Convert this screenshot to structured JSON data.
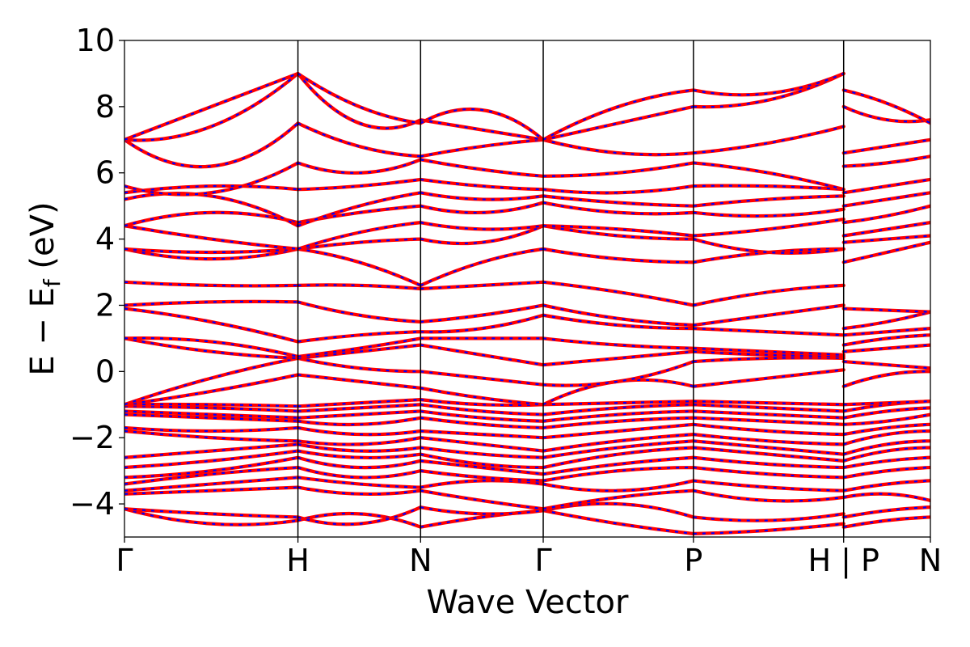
{
  "chart_data": {
    "type": "line",
    "xlabel": "Wave Vector",
    "ylabel_parts": {
      "lead": "E − E",
      "subscript": "f",
      "unit": " (eV)"
    },
    "ylim": [
      -5,
      10
    ],
    "yticks": [
      {
        "value": -4,
        "label": "−4"
      },
      {
        "value": -2,
        "label": "−2"
      },
      {
        "value": 0,
        "label": "0"
      },
      {
        "value": 2,
        "label": "2"
      },
      {
        "value": 4,
        "label": "4"
      },
      {
        "value": 6,
        "label": "6"
      },
      {
        "value": 8,
        "label": "8"
      },
      {
        "value": 10,
        "label": "10"
      }
    ],
    "kpath_labels": [
      "Γ",
      "H",
      "N",
      "Γ",
      "P",
      "H | P",
      "N"
    ],
    "kpath_positions": [
      0,
      1.0,
      0.707,
      0.707,
      0.866,
      0.866,
      0.5
    ],
    "line_colors": {
      "solid": "#ff0000",
      "dashed": "#0000ff"
    },
    "style": "red solid lines overlaid with blue dashed lines (two calculations coinciding)",
    "bands": [
      {
        "segments": [
          [
            -4.15,
            -4.6,
            -4.5
          ],
          [
            -4.5,
            -4.3,
            -4.7
          ],
          [
            -4.7,
            -4.4,
            -4.2
          ],
          [
            -4.2,
            -4.6,
            -4.9
          ],
          [
            -4.9,
            -4.8,
            -4.6
          ],
          [
            -4.7,
            -4.5,
            -4.4
          ]
        ]
      },
      {
        "segments": [
          [
            -4.15,
            -4.3,
            -4.4
          ],
          [
            -4.4,
            -4.6,
            -4.1
          ],
          [
            -4.1,
            -4.3,
            -4.2
          ],
          [
            -4.2,
            -4.0,
            -4.4
          ],
          [
            -4.4,
            -4.5,
            -4.3
          ],
          [
            -4.4,
            -4.2,
            -4.1
          ]
        ]
      },
      {
        "segments": [
          [
            -3.7,
            -3.6,
            -3.5
          ],
          [
            -3.5,
            -3.7,
            -3.6
          ],
          [
            -3.6,
            -3.9,
            -4.15
          ],
          [
            -4.15,
            -3.8,
            -3.6
          ],
          [
            -3.6,
            -3.9,
            -3.8
          ],
          [
            -3.8,
            -3.7,
            -3.9
          ]
        ]
      },
      {
        "segments": [
          [
            -3.6,
            -3.4,
            -3.2
          ],
          [
            -3.2,
            -3.4,
            -3.5
          ],
          [
            -3.5,
            -3.3,
            -3.4
          ],
          [
            -3.4,
            -3.6,
            -3.3
          ],
          [
            -3.3,
            -3.5,
            -3.6
          ],
          [
            -3.6,
            -3.4,
            -3.3
          ]
        ]
      },
      {
        "segments": [
          [
            -3.4,
            -3.1,
            -2.9
          ],
          [
            -2.9,
            -3.2,
            -3.0
          ],
          [
            -3.0,
            -3.2,
            -3.3
          ],
          [
            -3.3,
            -3.0,
            -2.9
          ],
          [
            -2.9,
            -3.1,
            -3.2
          ],
          [
            -3.2,
            -3.0,
            -2.9
          ]
        ]
      },
      {
        "segments": [
          [
            -3.2,
            -3.0,
            -2.6
          ],
          [
            -2.6,
            -2.9,
            -2.7
          ],
          [
            -2.7,
            -2.9,
            -3.1
          ],
          [
            -3.1,
            -2.8,
            -2.6
          ],
          [
            -2.6,
            -2.8,
            -2.9
          ],
          [
            -2.9,
            -2.7,
            -2.6
          ]
        ]
      },
      {
        "segments": [
          [
            -2.9,
            -2.7,
            -2.4
          ],
          [
            -2.4,
            -2.6,
            -2.5
          ],
          [
            -2.5,
            -2.8,
            -2.9
          ],
          [
            -2.9,
            -2.5,
            -2.3
          ],
          [
            -2.3,
            -2.5,
            -2.7
          ],
          [
            -2.7,
            -2.4,
            -2.3
          ]
        ]
      },
      {
        "segments": [
          [
            -2.6,
            -2.4,
            -2.2
          ],
          [
            -2.2,
            -2.4,
            -2.3
          ],
          [
            -2.3,
            -2.5,
            -2.6
          ],
          [
            -2.6,
            -2.3,
            -2.1
          ],
          [
            -2.1,
            -2.3,
            -2.5
          ],
          [
            -2.5,
            -2.2,
            -2.1
          ]
        ]
      },
      {
        "segments": [
          [
            -1.8,
            -2.0,
            -2.1
          ],
          [
            -2.1,
            -2.2,
            -2.0
          ],
          [
            -2.0,
            -2.2,
            -2.4
          ],
          [
            -2.4,
            -2.1,
            -1.9
          ],
          [
            -1.9,
            -2.1,
            -2.2
          ],
          [
            -2.2,
            -1.9,
            -1.8
          ]
        ]
      },
      {
        "segments": [
          [
            -1.7,
            -1.8,
            -1.7
          ],
          [
            -1.7,
            -1.9,
            -1.8
          ],
          [
            -1.8,
            -1.9,
            -2.0
          ],
          [
            -2.0,
            -1.8,
            -1.6
          ],
          [
            -1.6,
            -1.8,
            -1.9
          ],
          [
            -1.9,
            -1.7,
            -1.6
          ]
        ]
      },
      {
        "segments": [
          [
            -1.3,
            -1.4,
            -1.5
          ],
          [
            -1.5,
            -1.6,
            -1.4
          ],
          [
            -1.4,
            -1.6,
            -1.7
          ],
          [
            -1.7,
            -1.5,
            -1.4
          ],
          [
            -1.4,
            -1.5,
            -1.6
          ],
          [
            -1.6,
            -1.5,
            -1.3
          ]
        ]
      },
      {
        "segments": [
          [
            -1.2,
            -1.3,
            -1.4
          ],
          [
            -1.4,
            -1.3,
            -1.2
          ],
          [
            -1.2,
            -1.4,
            -1.5
          ],
          [
            -1.5,
            -1.3,
            -1.2
          ],
          [
            -1.2,
            -1.3,
            -1.4
          ],
          [
            -1.4,
            -1.2,
            -1.1
          ]
        ]
      },
      {
        "segments": [
          [
            -1.05,
            -1.1,
            -1.2
          ],
          [
            -1.2,
            -1.1,
            -1.0
          ],
          [
            -1.0,
            -1.2,
            -1.3
          ],
          [
            -1.3,
            -1.1,
            -1.0
          ],
          [
            -1.0,
            -1.1,
            -1.2
          ],
          [
            -1.2,
            -1.0,
            -0.9
          ]
        ]
      },
      {
        "segments": [
          [
            -1.0,
            -1.0,
            -1.05
          ],
          [
            -1.05,
            -0.95,
            -0.85
          ],
          [
            -0.85,
            -1.0,
            -1.0
          ],
          [
            -1.0,
            -0.95,
            -0.9
          ],
          [
            -0.9,
            -0.95,
            -1.0
          ],
          [
            -1.0,
            -0.95,
            -0.9
          ]
        ]
      },
      {
        "segments": [
          [
            -1.0,
            -0.6,
            -0.1
          ],
          [
            -0.1,
            -0.3,
            -0.5
          ],
          [
            -0.5,
            -0.8,
            -1.0
          ],
          [
            -1.0,
            -0.3,
            -0.45
          ],
          [
            -0.45,
            -0.2,
            0.05
          ],
          [
            -0.45,
            -0.1,
            0.0
          ]
        ]
      },
      {
        "segments": [
          [
            -1.0,
            -0.2,
            0.4
          ],
          [
            0.4,
            0.1,
            0.0
          ],
          [
            0.0,
            -0.2,
            -0.4
          ],
          [
            -0.4,
            -0.3,
            0.3
          ],
          [
            0.3,
            0.4,
            0.4
          ],
          [
            0.3,
            0.2,
            0.1
          ]
        ]
      },
      {
        "segments": [
          [
            1.0,
            0.6,
            0.4
          ],
          [
            0.4,
            0.6,
            0.8
          ],
          [
            0.8,
            0.5,
            0.2
          ],
          [
            0.2,
            0.4,
            0.6
          ],
          [
            0.6,
            0.5,
            0.45
          ],
          [
            0.6,
            0.7,
            0.8
          ]
        ]
      },
      {
        "segments": [
          [
            1.0,
            0.9,
            0.45
          ],
          [
            0.45,
            0.7,
            1.0
          ],
          [
            1.0,
            1.0,
            1.0
          ],
          [
            1.0,
            0.8,
            0.7
          ],
          [
            0.7,
            0.6,
            0.5
          ],
          [
            0.8,
            1.0,
            1.1
          ]
        ]
      },
      {
        "segments": [
          [
            1.9,
            1.5,
            0.9
          ],
          [
            0.9,
            1.1,
            1.2
          ],
          [
            1.2,
            1.3,
            1.7
          ],
          [
            1.7,
            1.4,
            1.3
          ],
          [
            1.3,
            1.2,
            1.1
          ],
          [
            1.1,
            1.2,
            1.3
          ]
        ]
      },
      {
        "segments": [
          [
            2.0,
            2.1,
            2.1
          ],
          [
            2.1,
            1.7,
            1.5
          ],
          [
            1.5,
            1.7,
            2.0
          ],
          [
            2.0,
            1.6,
            1.4
          ],
          [
            1.4,
            1.7,
            2.0
          ],
          [
            1.3,
            1.5,
            1.8
          ]
        ]
      },
      {
        "segments": [
          [
            2.7,
            2.6,
            2.6
          ],
          [
            2.6,
            2.6,
            2.5
          ],
          [
            2.5,
            2.6,
            2.7
          ],
          [
            2.7,
            2.4,
            2.0
          ],
          [
            2.0,
            2.4,
            2.6
          ],
          [
            1.9,
            1.85,
            1.8
          ]
        ]
      },
      {
        "segments": [
          [
            3.7,
            3.4,
            3.7
          ],
          [
            3.7,
            3.3,
            2.6
          ],
          [
            2.6,
            3.3,
            3.7
          ],
          [
            3.7,
            3.4,
            3.3
          ],
          [
            3.3,
            3.6,
            3.7
          ],
          [
            3.3,
            3.6,
            3.9
          ]
        ]
      },
      {
        "segments": [
          [
            3.7,
            3.6,
            3.7
          ],
          [
            3.7,
            3.9,
            4.0
          ],
          [
            4.0,
            3.9,
            4.4
          ],
          [
            4.4,
            4.1,
            4.0
          ],
          [
            4.0,
            3.6,
            3.7
          ],
          [
            3.9,
            4.0,
            4.1
          ]
        ]
      },
      {
        "segments": [
          [
            4.4,
            4.0,
            3.7
          ],
          [
            3.7,
            4.2,
            4.5
          ],
          [
            4.5,
            4.3,
            4.4
          ],
          [
            4.4,
            4.3,
            4.1
          ],
          [
            4.1,
            4.3,
            4.6
          ],
          [
            4.1,
            4.3,
            4.5
          ]
        ]
      },
      {
        "segments": [
          [
            4.4,
            4.8,
            4.5
          ],
          [
            4.5,
            4.8,
            5.0
          ],
          [
            5.0,
            4.8,
            5.1
          ],
          [
            5.1,
            4.8,
            4.8
          ],
          [
            4.8,
            4.7,
            4.9
          ],
          [
            4.5,
            4.7,
            5.0
          ]
        ]
      },
      {
        "segments": [
          [
            5.2,
            5.3,
            4.4
          ],
          [
            4.4,
            5.0,
            5.4
          ],
          [
            5.4,
            5.2,
            5.3
          ],
          [
            5.3,
            5.1,
            5.0
          ],
          [
            5.0,
            5.2,
            5.3
          ],
          [
            5.0,
            5.2,
            5.4
          ]
        ]
      },
      {
        "segments": [
          [
            5.4,
            5.6,
            5.5
          ],
          [
            5.5,
            5.6,
            5.8
          ],
          [
            5.8,
            5.6,
            5.5
          ],
          [
            5.5,
            5.4,
            5.6
          ],
          [
            5.6,
            5.6,
            5.5
          ],
          [
            5.4,
            5.6,
            5.8
          ]
        ]
      },
      {
        "segments": [
          [
            5.6,
            5.4,
            6.3
          ],
          [
            6.3,
            6.0,
            6.4
          ],
          [
            6.4,
            6.1,
            5.9
          ],
          [
            5.9,
            6.0,
            6.3
          ],
          [
            6.3,
            6.0,
            5.5
          ],
          [
            6.2,
            6.3,
            6.5
          ]
        ]
      },
      {
        "segments": [
          [
            7.0,
            6.2,
            7.5
          ],
          [
            7.5,
            6.8,
            6.5
          ],
          [
            6.5,
            6.8,
            7.0
          ],
          [
            7.0,
            6.6,
            6.6
          ],
          [
            6.6,
            6.9,
            7.4
          ],
          [
            6.6,
            6.8,
            7.0
          ]
        ]
      },
      {
        "segments": [
          [
            7.0,
            7.4,
            9.0
          ],
          [
            9.0,
            7.5,
            7.6
          ],
          [
            7.6,
            7.3,
            7.0
          ],
          [
            7.0,
            7.5,
            8.0
          ],
          [
            8.0,
            8.2,
            9.0
          ],
          [
            8.0,
            7.6,
            7.6
          ]
        ]
      },
      {
        "segments": [
          [
            7.0,
            8.0,
            9.0
          ],
          [
            9.0,
            8.0,
            7.5
          ],
          [
            7.5,
            7.9,
            7.0
          ],
          [
            7.0,
            8.0,
            8.5
          ],
          [
            8.5,
            8.4,
            9.0
          ],
          [
            8.5,
            8.1,
            7.5
          ]
        ]
      }
    ]
  }
}
